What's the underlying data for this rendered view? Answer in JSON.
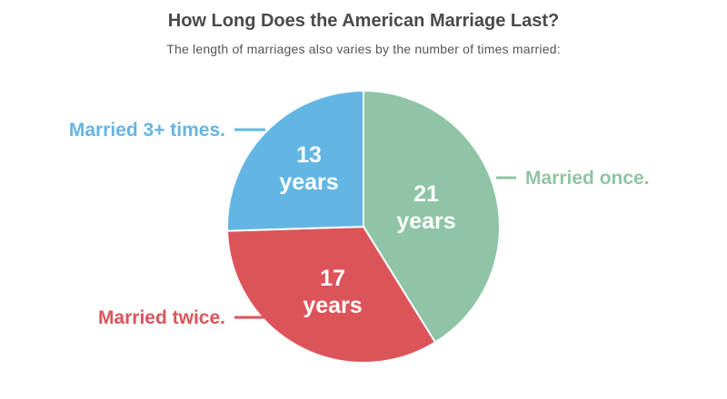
{
  "title": "How Long Does the American Marriage Last?",
  "subtitle": "The length of marriages also varies by the number of times married:",
  "chart_data": {
    "type": "pie",
    "title": "How Long Does the American Marriage Last?",
    "subtitle": "The length of marriages also varies by the number of times married:",
    "unit": "years",
    "slices": [
      {
        "category": "Married once.",
        "value": 21,
        "value_text": "21",
        "unit_text": "years",
        "color": "#8fc4a6"
      },
      {
        "category": "Married twice.",
        "value": 17,
        "value_text": "17",
        "unit_text": "years",
        "color": "#dc545a"
      },
      {
        "category": "Married 3+ times.",
        "value": 13,
        "value_text": "13",
        "unit_text": "years",
        "color": "#63b6e3"
      }
    ],
    "start_angle": "12 o'clock",
    "direction": "clockwise",
    "legend": "callout labels outside slices"
  }
}
